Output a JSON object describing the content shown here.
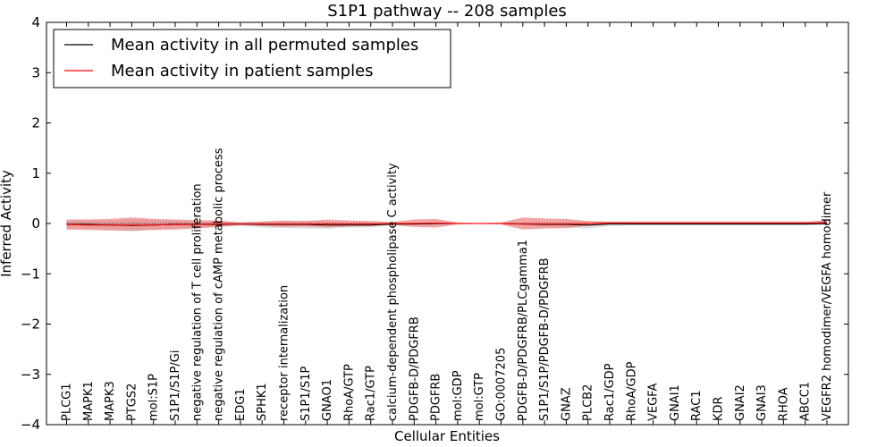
{
  "chart_data": {
    "type": "line",
    "title": "S1P1 pathway -- 208 samples",
    "xlabel": "Cellular Entities",
    "ylabel": "Inferred Activity",
    "ylim": [
      -4,
      4
    ],
    "yticks": [
      -4,
      -3,
      -2,
      -1,
      0,
      1,
      2,
      3,
      4
    ],
    "ytick_labels": [
      "−4",
      "−3",
      "−2",
      "−1",
      "0",
      "1",
      "2",
      "3",
      "4"
    ],
    "legend_position": "top-left",
    "categories": [
      "PLCG1",
      "MAPK1",
      "MAPK3",
      "PTGS2",
      "mol:S1P",
      "S1P1/S1P/Gi",
      "negative regulation of T cell proliferation",
      "negative regulation of cAMP metabolic process",
      "EDG1",
      "SPHK1",
      "receptor internalization",
      "S1P1/S1P",
      "GNAO1",
      "RhoA/GTP",
      "Rac1/GTP",
      "calcium-dependent phospholipase C activity",
      "PDGFB-D/PDGFRB",
      "PDGFRB",
      "mol:GDP",
      "mol:GTP",
      "GO:0007205",
      "PDGFB-D/PDGFRB/PLCgamma1",
      "S1P1/S1P/PDGFB-D/PDGFRB",
      "GNAZ",
      "PLCB2",
      "Rac1/GDP",
      "RhoA/GDP",
      "VEGFA",
      "GNAI1",
      "RAC1",
      "KDR",
      "GNAI2",
      "GNAI3",
      "RHOA",
      "ABCC1",
      "VEGFR2 homodimer/VEGFA homodimer"
    ],
    "series": [
      {
        "name": "Mean activity in all permuted samples",
        "color": "#000000",
        "band_color": "#c8c8c8",
        "values": [
          -0.02,
          -0.02,
          -0.03,
          -0.04,
          -0.03,
          -0.02,
          -0.02,
          -0.02,
          -0.01,
          -0.02,
          -0.02,
          -0.02,
          -0.03,
          -0.03,
          -0.03,
          -0.01,
          -0.01,
          0.0,
          0.0,
          0.0,
          0.0,
          -0.01,
          -0.02,
          -0.02,
          -0.03,
          -0.01,
          -0.01,
          -0.01,
          -0.01,
          -0.01,
          -0.01,
          -0.01,
          -0.01,
          -0.01,
          -0.01,
          0.0
        ],
        "lower": [
          -0.1,
          -0.1,
          -0.12,
          -0.16,
          -0.13,
          -0.1,
          -0.08,
          -0.07,
          -0.05,
          -0.08,
          -0.09,
          -0.1,
          -0.1,
          -0.08,
          -0.08,
          -0.04,
          -0.03,
          -0.02,
          -0.01,
          -0.01,
          -0.01,
          -0.05,
          -0.07,
          -0.08,
          -0.1,
          -0.05,
          -0.04,
          -0.04,
          -0.04,
          -0.04,
          -0.04,
          -0.04,
          -0.04,
          -0.04,
          -0.04,
          -0.03
        ],
        "upper": [
          0.06,
          0.06,
          0.06,
          0.08,
          0.07,
          0.06,
          0.04,
          0.03,
          0.03,
          0.04,
          0.05,
          0.06,
          0.04,
          0.02,
          0.02,
          0.02,
          0.01,
          0.02,
          0.01,
          0.01,
          0.01,
          0.03,
          0.03,
          0.04,
          0.04,
          0.03,
          0.02,
          0.02,
          0.02,
          0.02,
          0.02,
          0.02,
          0.02,
          0.02,
          0.02,
          0.03
        ]
      },
      {
        "name": "Mean activity in patient samples",
        "color": "#ff0000",
        "band_color": "#f08080",
        "values": [
          -0.02,
          -0.03,
          -0.03,
          -0.03,
          -0.03,
          -0.02,
          -0.02,
          -0.01,
          -0.01,
          -0.01,
          -0.01,
          -0.01,
          -0.01,
          -0.01,
          -0.01,
          0.0,
          0.0,
          0.01,
          0.0,
          0.0,
          0.0,
          -0.01,
          -0.01,
          -0.01,
          0.0,
          0.01,
          0.01,
          0.01,
          0.01,
          0.01,
          0.01,
          0.01,
          0.01,
          0.01,
          0.01,
          0.02
        ],
        "lower": [
          -0.12,
          -0.13,
          -0.14,
          -0.14,
          -0.13,
          -0.12,
          -0.1,
          -0.07,
          -0.03,
          -0.05,
          -0.07,
          -0.06,
          -0.08,
          -0.06,
          -0.05,
          -0.03,
          -0.07,
          -0.08,
          -0.02,
          -0.01,
          -0.02,
          -0.12,
          -0.1,
          -0.09,
          -0.05,
          -0.02,
          -0.02,
          -0.02,
          -0.02,
          -0.02,
          -0.02,
          -0.02,
          -0.02,
          -0.02,
          -0.02,
          -0.02
        ],
        "upper": [
          0.08,
          0.08,
          0.09,
          0.12,
          0.09,
          0.08,
          0.07,
          0.06,
          0.02,
          0.04,
          0.06,
          0.05,
          0.08,
          0.06,
          0.05,
          0.03,
          0.08,
          0.09,
          0.02,
          0.01,
          0.02,
          0.12,
          0.1,
          0.09,
          0.05,
          0.04,
          0.04,
          0.04,
          0.04,
          0.04,
          0.04,
          0.04,
          0.04,
          0.04,
          0.04,
          0.06
        ]
      }
    ]
  }
}
